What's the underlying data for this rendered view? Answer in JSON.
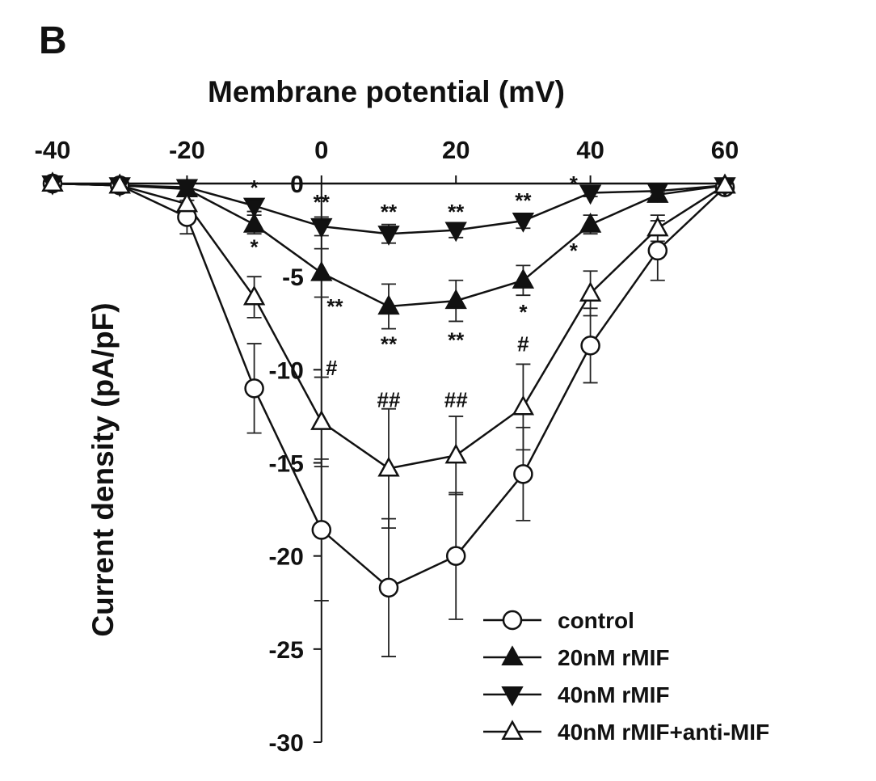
{
  "panel_label": "B",
  "chart_data": {
    "type": "line",
    "xlabel": "Membrane potential (mV)",
    "ylabel": "Current density (pA/pF)",
    "xlim": [
      -40,
      60
    ],
    "ylim": [
      -30,
      0
    ],
    "x_ticks": [
      "-40",
      "-20",
      "0",
      "20",
      "40",
      "60"
    ],
    "y_ticks": [
      "0",
      "-5",
      "-10",
      "-15",
      "-20",
      "-25",
      "-30"
    ],
    "x": [
      -40,
      -30,
      -20,
      -10,
      0,
      10,
      20,
      30,
      40,
      50,
      60
    ],
    "legend_position": "bottom-right",
    "series": [
      {
        "name": "control",
        "marker": "open-circle",
        "values": [
          0,
          -0.1,
          -1.8,
          -11,
          -18.6,
          -21.7,
          -20,
          -15.6,
          -8.7,
          -3.6,
          -0.2
        ],
        "errors": [
          0,
          0.1,
          0.9,
          2.4,
          3.8,
          3.7,
          3.4,
          2.5,
          2.0,
          1.6,
          0.1
        ]
      },
      {
        "name": "20nM rMIF",
        "marker": "filled-up-triangle",
        "values": [
          0,
          -0.1,
          -0.3,
          -2.2,
          -4.8,
          -6.6,
          -6.3,
          -5.2,
          -2.2,
          -0.6,
          -0.1
        ],
        "errors": [
          0,
          0.1,
          0.2,
          0.5,
          1.3,
          1.2,
          1.1,
          0.8,
          0.5,
          0.2,
          0.1
        ]
      },
      {
        "name": "40nM rMIF",
        "marker": "filled-down-triangle",
        "values": [
          0,
          -0.1,
          -0.2,
          -1.2,
          -2.3,
          -2.7,
          -2.5,
          -2.0,
          -0.5,
          -0.4,
          -0.1
        ],
        "errors": [
          0,
          0.1,
          0.1,
          0.3,
          0.5,
          0.5,
          0.4,
          0.4,
          0.2,
          0.1,
          0.1
        ]
      },
      {
        "name": "40nM rMIF+anti-MIF",
        "marker": "open-up-triangle",
        "values": [
          0,
          -0.1,
          -1.1,
          -6.1,
          -12.8,
          -15.3,
          -14.6,
          -12.0,
          -5.9,
          -2.4,
          -0.1
        ],
        "errors": [
          0,
          0.1,
          0.5,
          1.1,
          2.4,
          3.2,
          2.1,
          2.3,
          1.2,
          0.7,
          0.1
        ]
      }
    ],
    "annotations": [
      {
        "text": "*",
        "x": -10,
        "y": -0.6
      },
      {
        "text": "**",
        "x": 0,
        "y": -1.4
      },
      {
        "text": "**",
        "x": 10,
        "y": -1.9
      },
      {
        "text": "**",
        "x": 20,
        "y": -1.9
      },
      {
        "text": "**",
        "x": 30,
        "y": -1.3
      },
      {
        "text": "*",
        "x": 37.5,
        "y": -0.4
      },
      {
        "text": "*",
        "x": -10,
        "y": -3.8
      },
      {
        "text": "**",
        "x": 2,
        "y": -7.0
      },
      {
        "text": "**",
        "x": 10,
        "y": -9.0
      },
      {
        "text": "**",
        "x": 20,
        "y": -8.8
      },
      {
        "text": "*",
        "x": 30,
        "y": -7.3
      },
      {
        "text": "*",
        "x": 37.5,
        "y": -4.0
      },
      {
        "text": "#",
        "x": 1.5,
        "y": -10.3
      },
      {
        "text": "##",
        "x": 10,
        "y": -12.0
      },
      {
        "text": "##",
        "x": 20,
        "y": -12.0
      },
      {
        "text": "#",
        "x": 30,
        "y": -9.0
      }
    ]
  }
}
